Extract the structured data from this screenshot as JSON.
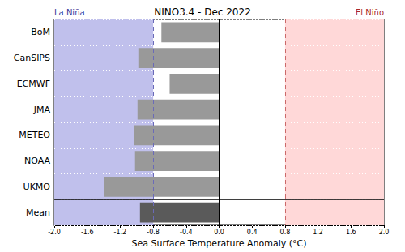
{
  "chart_data": {
    "type": "bar",
    "orientation": "horizontal",
    "title": "NINO3.4 - Dec 2022",
    "x_label": "Sea Surface Temperature Anomaly (°C)",
    "categories": [
      "BoM",
      "CanSIPS",
      "ECMWF",
      "JMA",
      "METEO",
      "NOAA",
      "UKMO",
      "Mean"
    ],
    "values": [
      -0.7,
      -0.98,
      -0.6,
      -0.99,
      -1.03,
      -1.02,
      -1.4,
      -0.96
    ],
    "colors": [
      "#999999",
      "#999999",
      "#999999",
      "#999999",
      "#999999",
      "#999999",
      "#999999",
      "#5a5a5a"
    ],
    "xlim": [
      -2.0,
      2.0
    ],
    "xticks": [
      {
        "value": -2.0,
        "label": "-2.0"
      },
      {
        "value": -1.6,
        "label": "-1.6"
      },
      {
        "value": -1.2,
        "label": "-1.2"
      },
      {
        "value": -0.8,
        "label": "-0.8"
      },
      {
        "value": -0.4,
        "label": "-0.4"
      },
      {
        "value": 0,
        "label": "0.0"
      },
      {
        "value": 0.4,
        "label": "0.4"
      },
      {
        "value": 0.8,
        "label": "0.8"
      },
      {
        "value": 1.2,
        "label": "1.2"
      },
      {
        "value": 1.6,
        "label": "1.6"
      },
      {
        "value": 2.0,
        "label": "2.0"
      }
    ],
    "regions": [
      {
        "label": "La Niña",
        "from": -2.0,
        "to": -0.8,
        "color": "#c0c0ec"
      },
      {
        "label": "El Niño",
        "from": 0.8,
        "to": 2.0,
        "color": "#ffd8d8"
      }
    ],
    "grid": true
  }
}
